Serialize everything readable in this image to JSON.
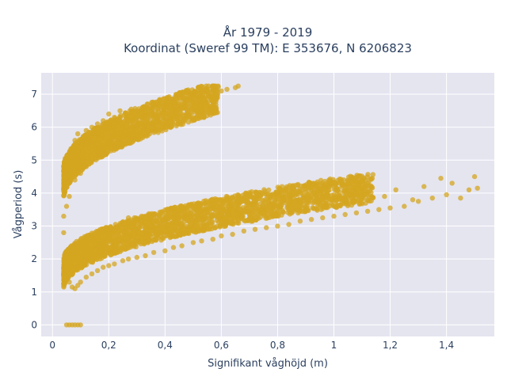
{
  "chart_data": {
    "type": "scatter",
    "title": "År 1979 - 2019",
    "subtitle": "Koordinat (Sweref 99 TM): E 353676, N 6206823",
    "xlabel": "Signifikant våghöjd (m)",
    "ylabel": "Vågperiod (s)",
    "xlim": [
      -0.04,
      1.57
    ],
    "ylim": [
      -0.35,
      7.65
    ],
    "x_ticks": [
      0,
      0.2,
      0.4,
      0.6,
      0.8,
      1,
      1.2,
      1.4
    ],
    "x_tick_labels": [
      "0",
      "0,2",
      "0,4",
      "0,6",
      "0,8",
      "1",
      "1,2",
      "1,4"
    ],
    "y_ticks": [
      0,
      1,
      2,
      3,
      4,
      5,
      6,
      7
    ],
    "y_tick_labels": [
      "0",
      "1",
      "2",
      "3",
      "4",
      "5",
      "6",
      "7"
    ],
    "grid": true,
    "marker_color": "#d4a520",
    "background_color": "#e5e5f0",
    "series": [
      {
        "points": [
          [
            0.05,
            0
          ],
          [
            0.06,
            0
          ],
          [
            0.07,
            0
          ],
          [
            0.08,
            0
          ],
          [
            0.09,
            0
          ],
          [
            0.1,
            0
          ],
          [
            0.04,
            1.25
          ],
          [
            0.04,
            1.5
          ],
          [
            0.05,
            1.65
          ],
          [
            0.05,
            1.8
          ],
          [
            0.06,
            1.3
          ],
          [
            0.06,
            1.95
          ],
          [
            0.07,
            1.15
          ],
          [
            0.07,
            2.1
          ],
          [
            0.08,
            1.1
          ],
          [
            0.08,
            2.25
          ],
          [
            0.09,
            1.2
          ],
          [
            0.09,
            2.35
          ],
          [
            0.1,
            1.3
          ],
          [
            0.1,
            2.4
          ],
          [
            0.12,
            1.45
          ],
          [
            0.12,
            2.5
          ],
          [
            0.14,
            1.55
          ],
          [
            0.14,
            2.6
          ],
          [
            0.16,
            1.65
          ],
          [
            0.16,
            2.7
          ],
          [
            0.18,
            1.75
          ],
          [
            0.18,
            2.8
          ],
          [
            0.2,
            1.8
          ],
          [
            0.2,
            2.85
          ],
          [
            0.22,
            1.85
          ],
          [
            0.22,
            2.9
          ],
          [
            0.25,
            1.95
          ],
          [
            0.25,
            3.1
          ],
          [
            0.27,
            2.0
          ],
          [
            0.27,
            3.25
          ],
          [
            0.3,
            2.05
          ],
          [
            0.3,
            3.2
          ],
          [
            0.33,
            2.1
          ],
          [
            0.33,
            3.3
          ],
          [
            0.36,
            2.2
          ],
          [
            0.36,
            3.15
          ],
          [
            0.4,
            2.25
          ],
          [
            0.4,
            2.9
          ],
          [
            0.43,
            2.35
          ],
          [
            0.43,
            3.05
          ],
          [
            0.46,
            2.4
          ],
          [
            0.46,
            3.0
          ],
          [
            0.5,
            2.5
          ],
          [
            0.5,
            3.1
          ],
          [
            0.53,
            2.55
          ],
          [
            0.53,
            3.2
          ],
          [
            0.57,
            2.6
          ],
          [
            0.57,
            3.3
          ],
          [
            0.6,
            2.7
          ],
          [
            0.6,
            3.35
          ],
          [
            0.64,
            2.75
          ],
          [
            0.64,
            3.4
          ],
          [
            0.68,
            2.85
          ],
          [
            0.68,
            3.45
          ],
          [
            0.72,
            2.9
          ],
          [
            0.72,
            3.5
          ],
          [
            0.76,
            2.95
          ],
          [
            0.76,
            3.55
          ],
          [
            0.8,
            3.0
          ],
          [
            0.8,
            3.6
          ],
          [
            0.84,
            3.05
          ],
          [
            0.84,
            3.7
          ],
          [
            0.88,
            3.15
          ],
          [
            0.88,
            3.75
          ],
          [
            0.92,
            3.2
          ],
          [
            0.92,
            3.8
          ],
          [
            0.96,
            3.25
          ],
          [
            0.96,
            3.9
          ],
          [
            1.0,
            3.3
          ],
          [
            1.0,
            3.95
          ],
          [
            1.04,
            3.35
          ],
          [
            1.04,
            3.9
          ],
          [
            1.08,
            3.4
          ],
          [
            1.08,
            4.0
          ],
          [
            1.12,
            3.45
          ],
          [
            1.12,
            4.05
          ],
          [
            1.16,
            3.5
          ],
          [
            1.18,
            3.9
          ],
          [
            1.2,
            3.55
          ],
          [
            1.22,
            4.1
          ],
          [
            1.25,
            3.6
          ],
          [
            1.28,
            3.8
          ],
          [
            1.3,
            3.75
          ],
          [
            1.32,
            4.2
          ],
          [
            1.35,
            3.85
          ],
          [
            1.38,
            4.45
          ],
          [
            1.4,
            3.95
          ],
          [
            1.42,
            4.3
          ],
          [
            1.45,
            3.85
          ],
          [
            1.48,
            4.1
          ],
          [
            1.5,
            4.5
          ],
          [
            1.51,
            4.15
          ],
          [
            0.04,
            2.8
          ],
          [
            0.04,
            3.3
          ],
          [
            0.05,
            3.6
          ],
          [
            0.05,
            4.2
          ],
          [
            0.06,
            4.5
          ],
          [
            0.06,
            3.9
          ],
          [
            0.07,
            4.8
          ],
          [
            0.07,
            5.2
          ],
          [
            0.08,
            5.6
          ],
          [
            0.08,
            4.4
          ],
          [
            0.09,
            5.0
          ],
          [
            0.09,
            5.8
          ],
          [
            0.1,
            5.4
          ],
          [
            0.1,
            4.6
          ],
          [
            0.11,
            5.7
          ],
          [
            0.11,
            4.8
          ],
          [
            0.12,
            5.9
          ],
          [
            0.12,
            5.1
          ],
          [
            0.14,
            5.3
          ],
          [
            0.14,
            6.0
          ],
          [
            0.16,
            5.5
          ],
          [
            0.16,
            6.1
          ],
          [
            0.18,
            5.6
          ],
          [
            0.18,
            6.2
          ],
          [
            0.2,
            5.7
          ],
          [
            0.2,
            6.4
          ],
          [
            0.22,
            5.75
          ],
          [
            0.22,
            6.3
          ],
          [
            0.24,
            5.8
          ],
          [
            0.24,
            6.5
          ],
          [
            0.26,
            5.85
          ],
          [
            0.26,
            6.4
          ],
          [
            0.28,
            5.9
          ],
          [
            0.28,
            6.55
          ],
          [
            0.3,
            5.95
          ],
          [
            0.3,
            6.5
          ],
          [
            0.32,
            6.0
          ],
          [
            0.32,
            6.6
          ],
          [
            0.34,
            6.05
          ],
          [
            0.34,
            6.55
          ],
          [
            0.36,
            6.1
          ],
          [
            0.36,
            6.7
          ],
          [
            0.38,
            6.15
          ],
          [
            0.38,
            6.6
          ],
          [
            0.4,
            6.2
          ],
          [
            0.4,
            6.75
          ],
          [
            0.42,
            6.25
          ],
          [
            0.42,
            6.6
          ],
          [
            0.44,
            6.3
          ],
          [
            0.44,
            6.9
          ],
          [
            0.46,
            6.4
          ],
          [
            0.46,
            6.7
          ],
          [
            0.48,
            6.5
          ],
          [
            0.48,
            6.8
          ],
          [
            0.5,
            6.6
          ],
          [
            0.5,
            7.0
          ],
          [
            0.52,
            7.2
          ],
          [
            0.53,
            6.65
          ],
          [
            0.55,
            7.1
          ],
          [
            0.56,
            6.9
          ],
          [
            0.58,
            7.25
          ],
          [
            0.6,
            7.1
          ],
          [
            0.62,
            7.15
          ],
          [
            0.65,
            7.2
          ],
          [
            0.66,
            7.25
          ]
        ]
      }
    ]
  }
}
